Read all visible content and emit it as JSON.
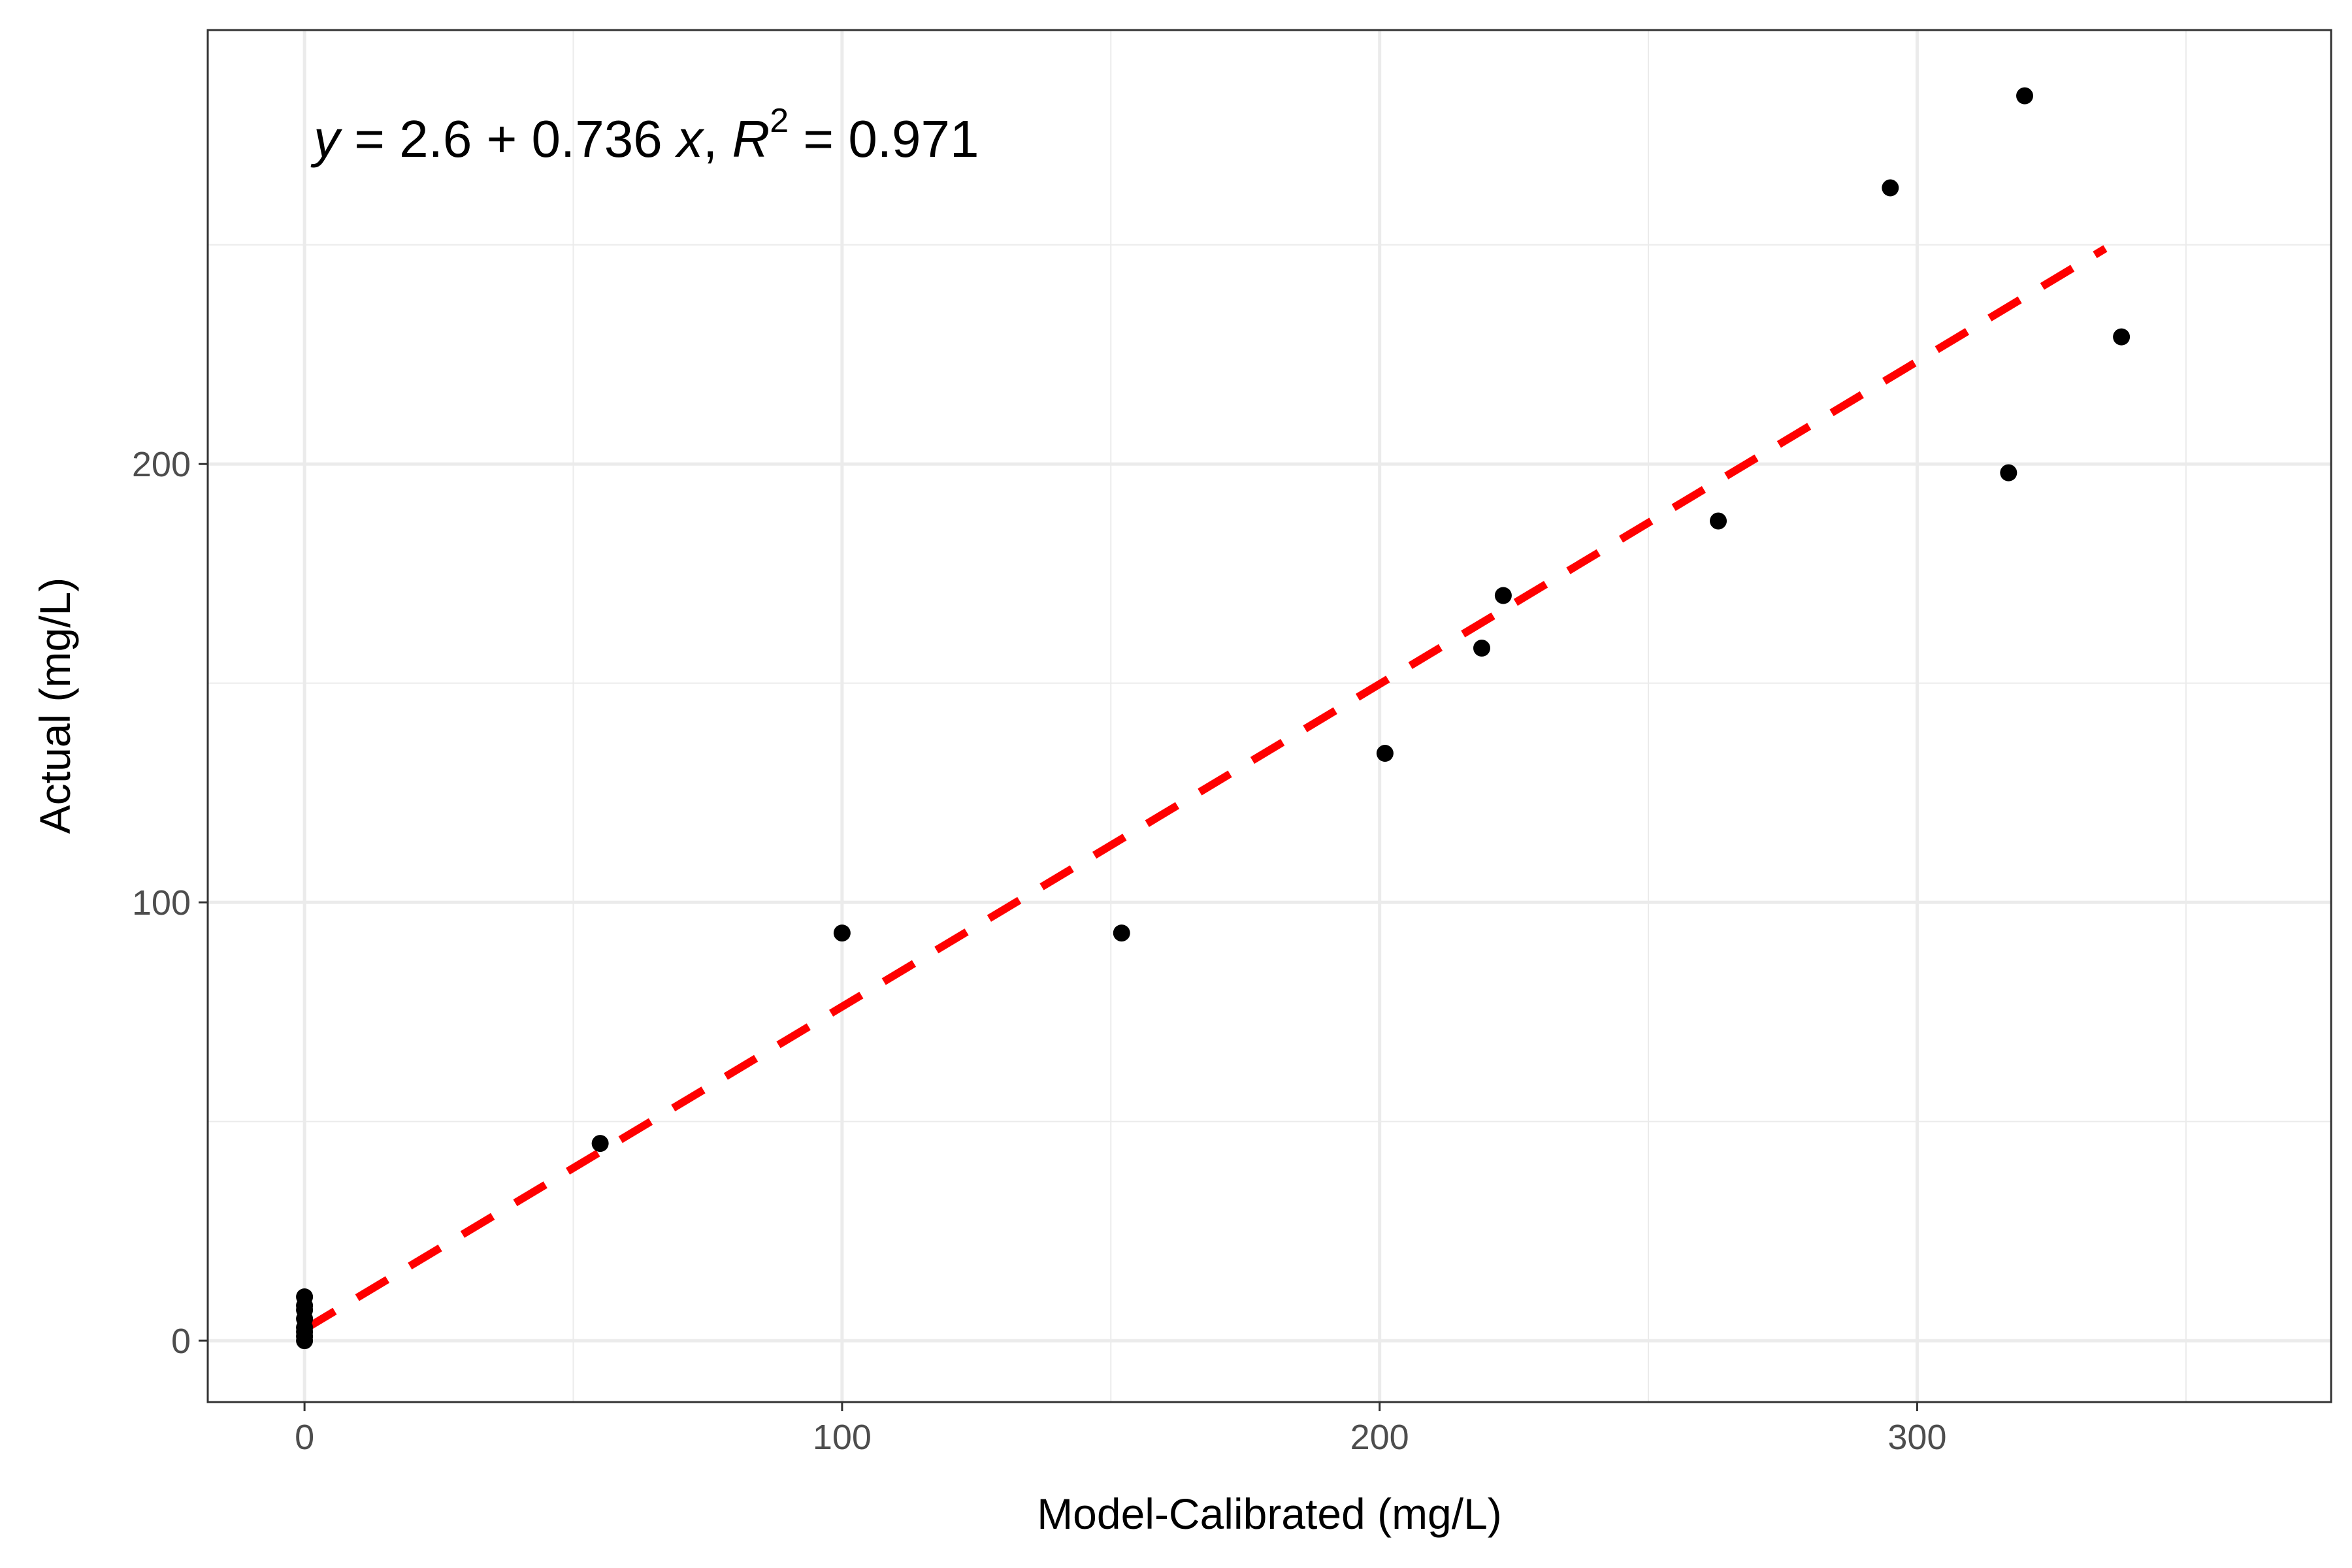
{
  "chart_data": {
    "type": "scatter",
    "xlabel": "Model-Calibrated (mg/L)",
    "ylabel": "Actual (mg/L)",
    "xlim": [
      -18,
      377
    ],
    "ylim": [
      -14,
      299
    ],
    "x_ticks": [
      0,
      100,
      200,
      300
    ],
    "y_ticks": [
      0,
      100,
      200
    ],
    "x_tick_labels": [
      "0",
      "100",
      "200",
      "300"
    ],
    "y_tick_labels": [
      "0",
      "100",
      "200"
    ],
    "grid": true,
    "points": [
      {
        "x": 0,
        "y": 0
      },
      {
        "x": 0,
        "y": 1
      },
      {
        "x": 0,
        "y": 2
      },
      {
        "x": 0,
        "y": 3
      },
      {
        "x": 0,
        "y": 5
      },
      {
        "x": 0,
        "y": 7
      },
      {
        "x": 0,
        "y": 8
      },
      {
        "x": 0,
        "y": 10
      },
      {
        "x": 55,
        "y": 45
      },
      {
        "x": 100,
        "y": 93
      },
      {
        "x": 152,
        "y": 93
      },
      {
        "x": 201,
        "y": 134
      },
      {
        "x": 219,
        "y": 158
      },
      {
        "x": 223,
        "y": 170
      },
      {
        "x": 263,
        "y": 187
      },
      {
        "x": 295,
        "y": 263
      },
      {
        "x": 317,
        "y": 198
      },
      {
        "x": 320,
        "y": 284
      },
      {
        "x": 338,
        "y": 229
      }
    ],
    "fit_line": {
      "intercept": 2.6,
      "slope": 0.736,
      "x_range": [
        0,
        335
      ]
    },
    "colors": {
      "points": "#000000",
      "fit_line": "#ff0000",
      "grid": "#ebebeb",
      "panel_border": "#333333"
    },
    "annotation": {
      "y_var": "y",
      "eq_rest": " = 2.6 + 0.736 ",
      "x_var": "x",
      "sep": ", ",
      "r_var": "R",
      "r_exp": "2",
      "r_val": " = 0.971"
    }
  }
}
